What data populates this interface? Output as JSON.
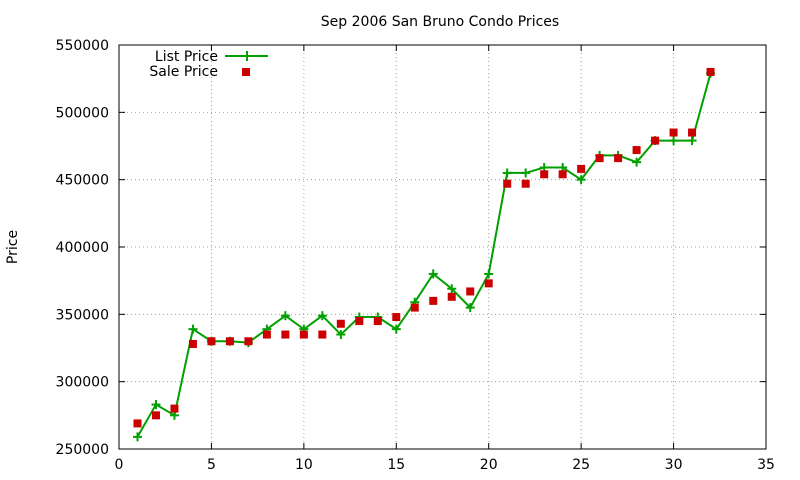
{
  "chart_data": {
    "type": "line",
    "title": "Sep 2006 San Bruno Condo Prices",
    "xlabel": "",
    "ylabel": "Price",
    "xlim": [
      0,
      35
    ],
    "ylim": [
      250000,
      550000
    ],
    "xticks": [
      0,
      5,
      10,
      15,
      20,
      25,
      30,
      35
    ],
    "yticks": [
      250000,
      300000,
      350000,
      400000,
      450000,
      500000,
      550000
    ],
    "grid": true,
    "legend_position": "top-left",
    "series": [
      {
        "name": "List Price",
        "style": "line+plus",
        "color": "#00a000",
        "x": [
          1,
          2,
          3,
          4,
          5,
          6,
          7,
          8,
          9,
          10,
          11,
          12,
          13,
          14,
          15,
          16,
          17,
          18,
          19,
          20,
          21,
          22,
          23,
          24,
          25,
          26,
          27,
          28,
          29,
          30,
          31,
          32
        ],
        "y": [
          259000,
          283000,
          275000,
          339000,
          330000,
          330000,
          329000,
          339000,
          349000,
          339000,
          349000,
          335000,
          348000,
          348000,
          339000,
          359000,
          380000,
          369000,
          355000,
          380000,
          455000,
          455000,
          459000,
          459000,
          450000,
          468000,
          468000,
          463000,
          479000,
          479000,
          479000,
          529000
        ]
      },
      {
        "name": "Sale Price",
        "style": "square",
        "color": "#cc0000",
        "x": [
          1,
          2,
          3,
          4,
          5,
          6,
          7,
          8,
          9,
          10,
          11,
          12,
          13,
          14,
          15,
          16,
          17,
          18,
          19,
          20,
          21,
          22,
          23,
          24,
          25,
          26,
          27,
          28,
          29,
          30,
          31,
          32
        ],
        "y": [
          269000,
          275000,
          280000,
          328000,
          330000,
          330000,
          330000,
          335000,
          335000,
          335000,
          335000,
          343000,
          345000,
          345000,
          348000,
          355000,
          360000,
          363000,
          367000,
          373000,
          447000,
          447000,
          454000,
          454000,
          458000,
          466000,
          466000,
          472000,
          479000,
          485000,
          485000,
          530000
        ]
      }
    ]
  }
}
